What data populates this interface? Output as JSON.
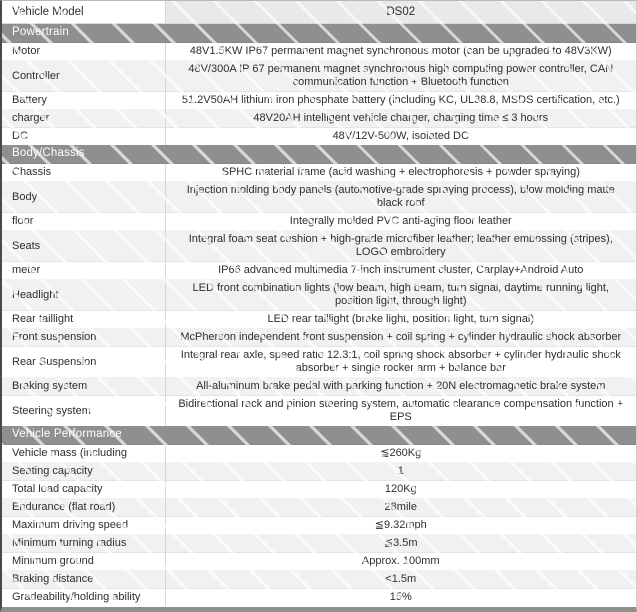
{
  "model_row": {
    "label": "Vehicle Model",
    "value": "DS02"
  },
  "sections": [
    {
      "title": "Powertrain",
      "rows": [
        {
          "label": "Motor",
          "value": "48V1.5KW IP67 permanent magnet synchronous motor (can be upgraded to 48V3KW)"
        },
        {
          "label": "Controller",
          "value": "48V/300A IP 67 permanent magnet synchronous high computing power controller, CAN communication function + Bluetooth function"
        },
        {
          "label": "Battery",
          "value": "51.2V50AH lithium iron phosphate battery (including KC, UL38.8, MSDS certification, etc.)"
        },
        {
          "label": "charger",
          "value": "48V20AH intelligent vehicle charger, charging time ≤ 3 hours"
        },
        {
          "label": "DC",
          "value": "48V/12V-500W, isolated DC"
        }
      ]
    },
    {
      "title": "Body/Chassis",
      "rows": [
        {
          "label": "Chassis",
          "value": "SPHC material frame (acid washing + electrophoresis + powder spraying)"
        },
        {
          "label": "Body",
          "value": "Injection molding body panels (automotive-grade spraying process), blow molding matte black roof"
        },
        {
          "label": "floor",
          "value": "Integrally molded PVC anti-aging floor leather"
        },
        {
          "label": "Seats",
          "value": "Integral foam seat cushion + high-grade microfiber leather; leather embossing (stripes), LOGO embroidery"
        },
        {
          "label": "meter",
          "value": "IP66 advanced multimedia 7-inch instrument cluster, Carplay+Android Auto"
        },
        {
          "label": "Headlight",
          "value": "LED front combination lights (low beam, high beam, turn signal, daytime running light, position light, through light)"
        },
        {
          "label": "Rear taillight",
          "value": "LED rear taillight (brake light, position light, turn signal)"
        },
        {
          "label": "Front suspension",
          "value": "McPherson independent front suspension + coil spring + cylinder hydraulic shock absorber"
        },
        {
          "label": "Rear Suspension",
          "value": "Integral rear axle, speed ratio 12.3:1, coil spring shock absorber + cylinder hydraulic shock absorber + single rocker arm + balance bar"
        },
        {
          "label": "Braking system",
          "value": "All-aluminum brake pedal with parking function + 20N electromagnetic brake system"
        },
        {
          "label": "Steering system",
          "value": "Bidirectional rack and pinion steering system, automatic clearance compensation function + EPS"
        }
      ]
    },
    {
      "title": "Vehicle Performance",
      "rows": [
        {
          "label": "Vehicle mass (including",
          "value": "≦260Kg"
        },
        {
          "label": "Seating capacity",
          "value": "1"
        },
        {
          "label": "Total load capacity",
          "value": "120Kg"
        },
        {
          "label": "Endurance (flat road)",
          "value": "28mile"
        },
        {
          "label": "Maximum driving speed",
          "value": "≦9.32mph"
        },
        {
          "label": "Minimum turning radius",
          "value": "≦3.5m"
        },
        {
          "label": "Minimum ground",
          "value": "Approx. 100mm"
        },
        {
          "label": "Braking distance",
          "value": "<1.5m"
        },
        {
          "label": "Gradeability/holding ability",
          "value": "15%"
        }
      ]
    }
  ],
  "colors": {
    "section_header_bg": "#8f8f8f",
    "section_header_text": "#ffffff",
    "stripe_bg": "#f1f1f1",
    "model_value_bg": "#e9e9e9",
    "text": "#2e2e2e",
    "bottom_border": "#8f8f8f",
    "divider": "#d6d6d6"
  }
}
